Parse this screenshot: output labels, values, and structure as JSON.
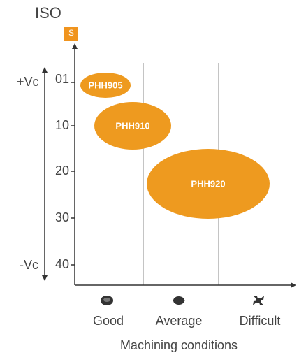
{
  "header": {
    "title": "ISO",
    "material": "S"
  },
  "axis": {
    "top": "+Vc",
    "bottom": "-Vc",
    "ticks": [
      "01",
      "10",
      "20",
      "30",
      "40"
    ],
    "x_label": "Machining conditions",
    "conditions": [
      "Good",
      "Average",
      "Difficult"
    ]
  },
  "grades": [
    "PHH905",
    "PHH910",
    "PHH920"
  ]
}
